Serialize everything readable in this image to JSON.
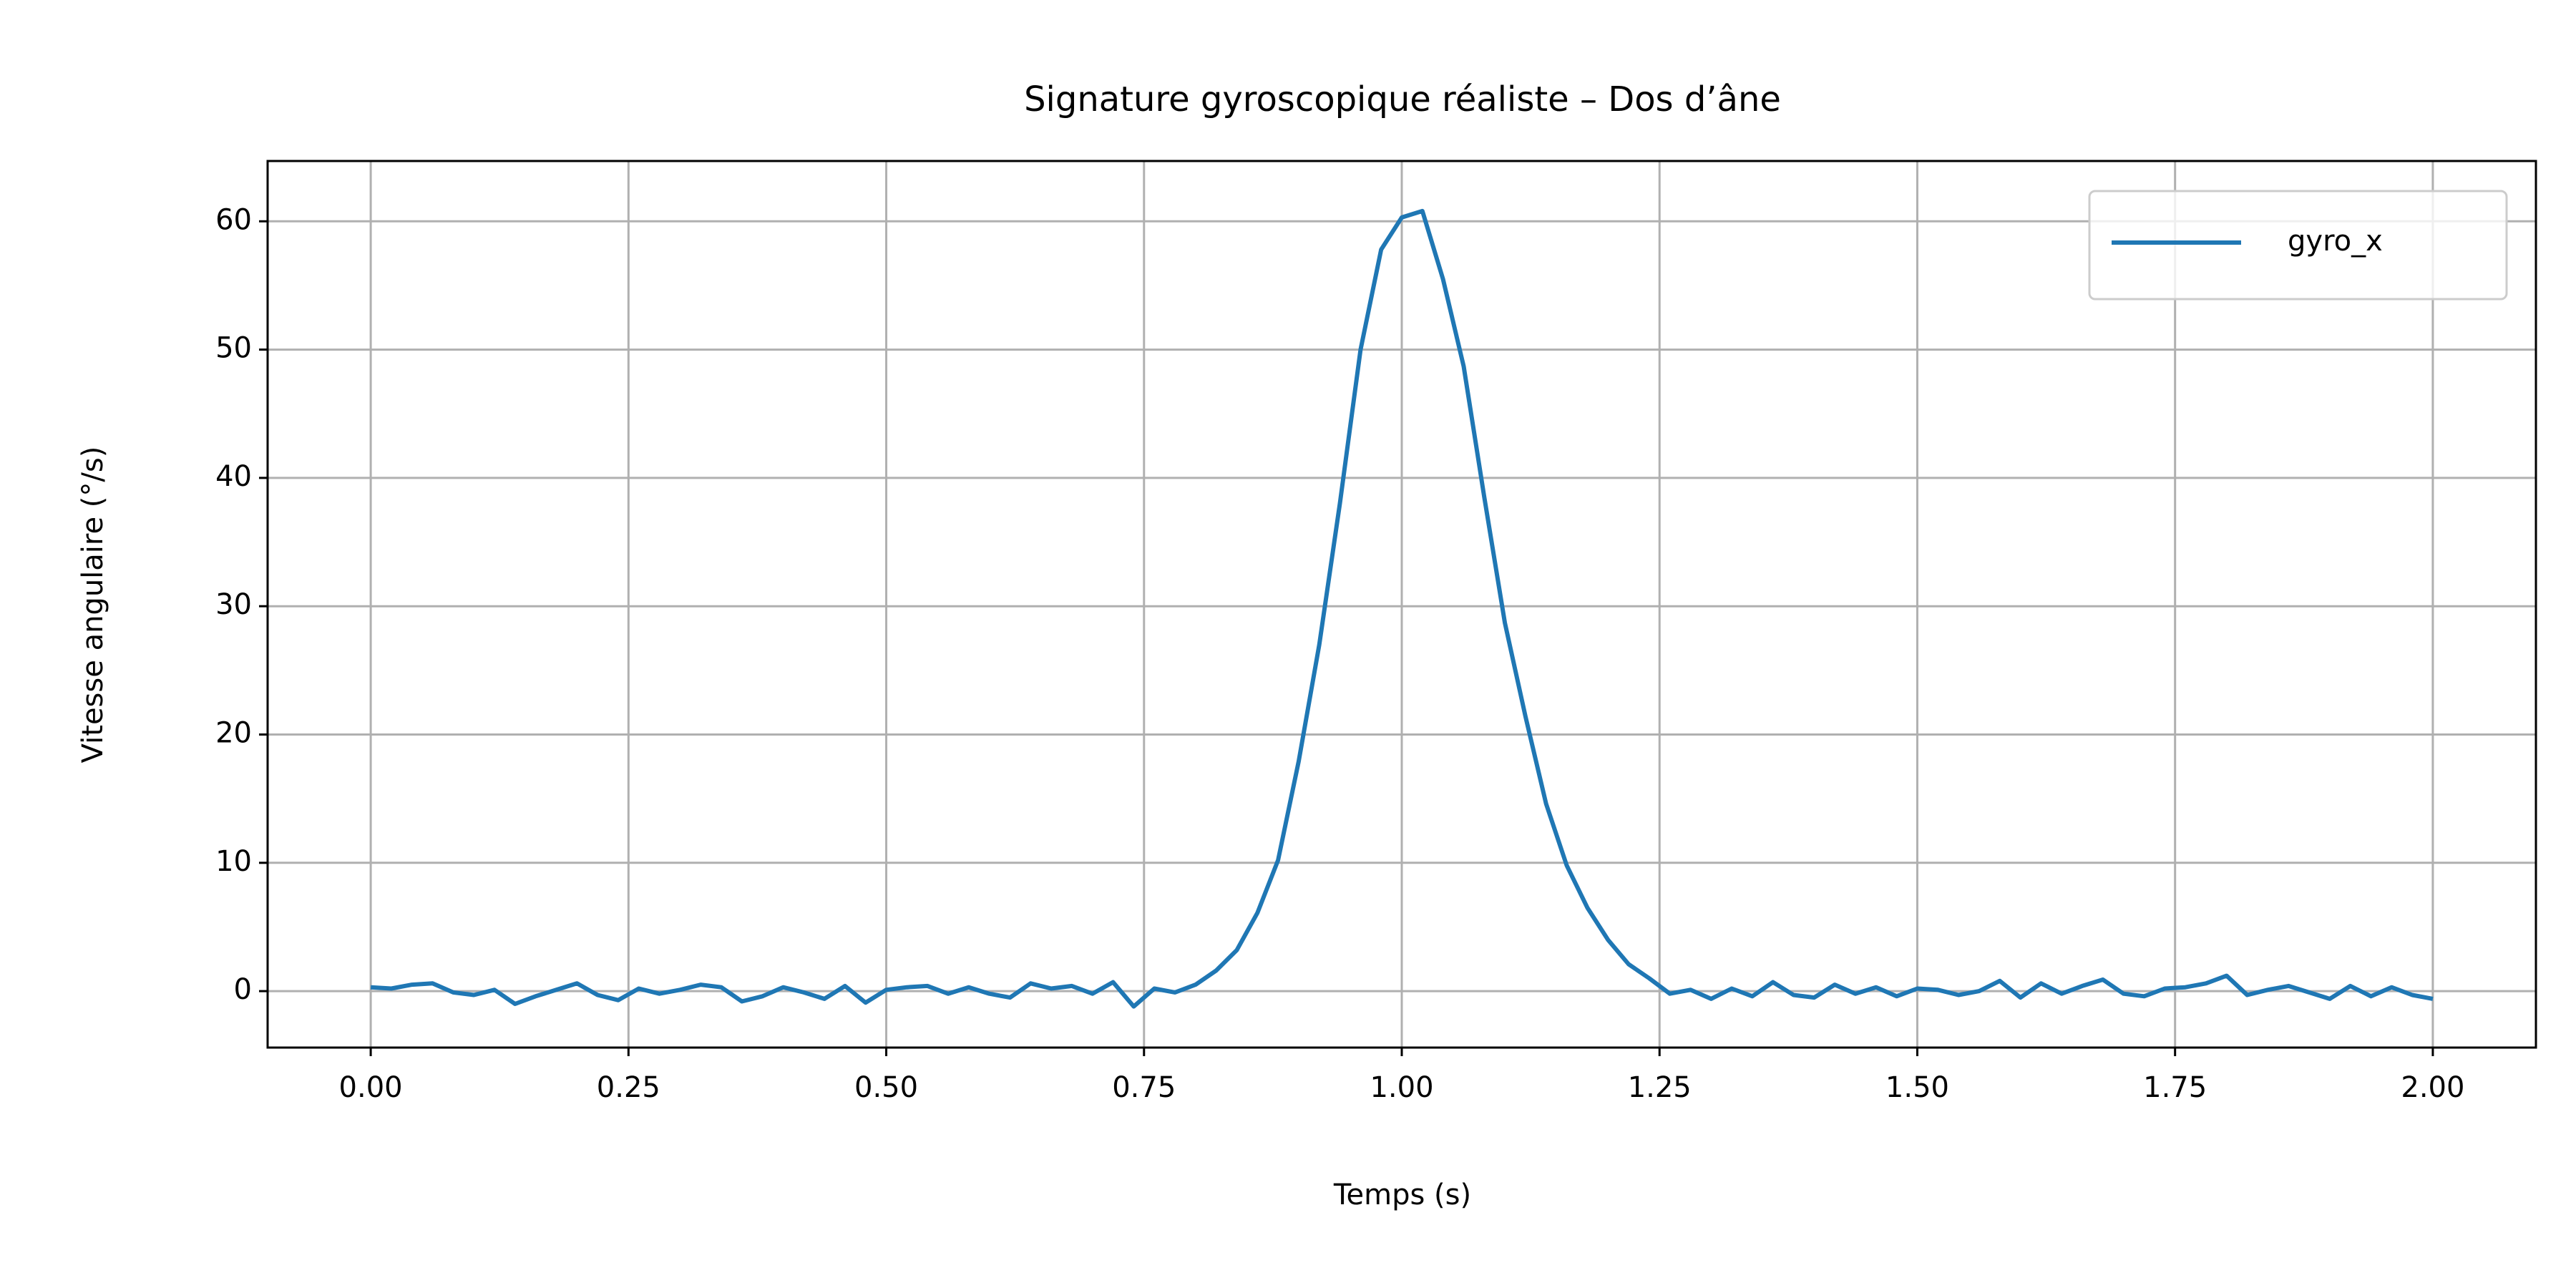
{
  "chart_data": {
    "type": "line",
    "title": "Signature gyroscopique réaliste – Dos d’âne",
    "xlabel": "Temps (s)",
    "ylabel": "Vitesse angulaire (°/s)",
    "x": [
      0.0,
      0.02,
      0.04,
      0.06,
      0.08,
      0.1,
      0.12,
      0.14,
      0.16,
      0.18,
      0.2,
      0.22,
      0.24,
      0.26,
      0.28,
      0.3,
      0.32,
      0.34,
      0.36,
      0.38,
      0.4,
      0.42,
      0.44,
      0.46,
      0.48,
      0.5,
      0.52,
      0.54,
      0.56,
      0.58,
      0.6,
      0.62,
      0.64,
      0.66,
      0.68,
      0.7,
      0.72,
      0.74,
      0.76,
      0.78,
      0.8,
      0.82,
      0.84,
      0.86,
      0.88,
      0.9,
      0.92,
      0.94,
      0.96,
      0.98,
      1.0,
      1.02,
      1.04,
      1.06,
      1.08,
      1.1,
      1.12,
      1.14,
      1.16,
      1.18,
      1.2,
      1.22,
      1.24,
      1.26,
      1.28,
      1.3,
      1.32,
      1.34,
      1.36,
      1.38,
      1.4,
      1.42,
      1.44,
      1.46,
      1.48,
      1.5,
      1.52,
      1.54,
      1.56,
      1.58,
      1.6,
      1.62,
      1.64,
      1.66,
      1.68,
      1.7,
      1.72,
      1.74,
      1.76,
      1.78,
      1.8,
      1.82,
      1.84,
      1.86,
      1.88,
      1.9,
      1.92,
      1.94,
      1.96,
      1.98,
      2.0
    ],
    "series": [
      {
        "name": "gyro_x",
        "color": "#1f77b4",
        "values": [
          0.3,
          0.2,
          0.5,
          0.6,
          -0.1,
          -0.3,
          0.1,
          -1.0,
          -0.4,
          0.1,
          0.6,
          -0.3,
          -0.7,
          0.2,
          -0.2,
          0.1,
          0.5,
          0.3,
          -0.8,
          -0.4,
          0.3,
          -0.1,
          -0.6,
          0.4,
          -0.9,
          0.1,
          0.3,
          0.4,
          -0.2,
          0.3,
          -0.2,
          -0.5,
          0.6,
          0.2,
          0.4,
          -0.2,
          0.7,
          -1.2,
          0.2,
          -0.1,
          0.5,
          1.6,
          3.2,
          6.1,
          10.2,
          17.9,
          27.0,
          38.0,
          50.0,
          57.8,
          60.3,
          60.8,
          55.5,
          48.7,
          38.5,
          28.7,
          21.4,
          14.6,
          9.8,
          6.5,
          4.0,
          2.1,
          1.0,
          -0.2,
          0.1,
          -0.6,
          0.2,
          -0.4,
          0.7,
          -0.3,
          -0.5,
          0.5,
          -0.2,
          0.3,
          -0.4,
          0.2,
          0.1,
          -0.3,
          0.0,
          0.8,
          -0.5,
          0.6,
          -0.2,
          0.4,
          0.9,
          -0.2,
          -0.4,
          0.2,
          0.3,
          0.6,
          1.2,
          -0.3,
          0.1,
          0.4,
          -0.1,
          -0.6,
          0.4,
          -0.4,
          0.3,
          -0.3,
          -0.6
        ]
      }
    ],
    "xlim": [
      -0.1,
      2.1
    ],
    "ylim": [
      -4.4,
      64.7
    ],
    "xticks": [
      {
        "value": 0,
        "label": "0.00"
      },
      {
        "value": 0.25,
        "label": "0.25"
      },
      {
        "value": 0.5,
        "label": "0.50"
      },
      {
        "value": 0.75,
        "label": "0.75"
      },
      {
        "value": 1,
        "label": "1.00"
      },
      {
        "value": 1.25,
        "label": "1.25"
      },
      {
        "value": 1.5,
        "label": "1.50"
      },
      {
        "value": 1.75,
        "label": "1.75"
      },
      {
        "value": 2,
        "label": "2.00"
      }
    ],
    "yticks": [
      0,
      10,
      20,
      30,
      40,
      50,
      60
    ],
    "grid": true,
    "legend": "upper right"
  }
}
